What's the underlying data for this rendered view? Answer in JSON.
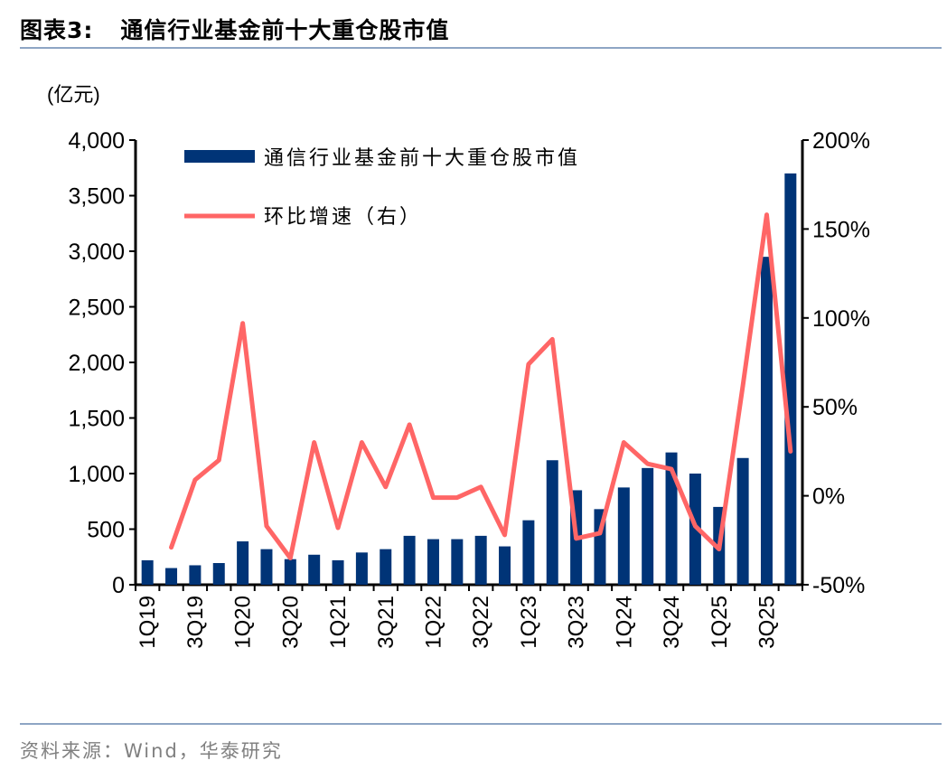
{
  "figure_label": "图表3:",
  "title": "通信行业基金前十大重仓股市值",
  "source": "资料来源：Wind，华泰研究",
  "colors": {
    "bar": "#003477",
    "line": "#FF6666",
    "rule": "#8EA5C4"
  },
  "chart_data": {
    "type": "bar",
    "title": "通信行业基金前十大重仓股市值",
    "ylabel": "(亿元)",
    "ylim": [
      0,
      4000
    ],
    "yticks": [
      "0",
      "500",
      "1,000",
      "1,500",
      "2,000",
      "2,500",
      "3,000",
      "3,500",
      "4,000"
    ],
    "y2lim": [
      -50,
      200
    ],
    "y2ticks": [
      "-50%",
      "0%",
      "50%",
      "100%",
      "150%",
      "200%"
    ],
    "categories": [
      "1Q19",
      "2Q19",
      "3Q19",
      "4Q19",
      "1Q20",
      "2Q20",
      "3Q20",
      "4Q20",
      "1Q21",
      "2Q21",
      "3Q21",
      "4Q21",
      "1Q22",
      "2Q22",
      "3Q22",
      "4Q22",
      "1Q23",
      "2Q23",
      "3Q23",
      "4Q23",
      "1Q24",
      "2Q24",
      "3Q24",
      "4Q24",
      "1Q25",
      "2Q25",
      "3Q25",
      "4Q25"
    ],
    "xticklabels": [
      "1Q19",
      "3Q19",
      "1Q20",
      "3Q20",
      "1Q21",
      "3Q21",
      "1Q22",
      "3Q22",
      "1Q23",
      "3Q23",
      "1Q24",
      "3Q24",
      "1Q25",
      "3Q25"
    ],
    "series": [
      {
        "name": "通信行业基金前十大重仓股市值",
        "type": "bar",
        "axis": "left",
        "values": [
          220,
          150,
          175,
          195,
          390,
          320,
          230,
          270,
          220,
          290,
          320,
          440,
          410,
          410,
          440,
          345,
          580,
          1120,
          850,
          680,
          875,
          1050,
          1190,
          1000,
          700,
          1140,
          2950,
          3700
        ]
      },
      {
        "name": "环比增速（右）",
        "type": "line",
        "axis": "right",
        "unit": "%",
        "values": [
          null,
          -29,
          9,
          20,
          97,
          -17,
          -35,
          30,
          -18,
          30,
          5,
          40,
          -1,
          -1,
          5,
          -22,
          74,
          88,
          -24,
          -21,
          30,
          18,
          15,
          -17,
          -30,
          62,
          158,
          25
        ]
      }
    ],
    "legend": "top-left inside"
  }
}
